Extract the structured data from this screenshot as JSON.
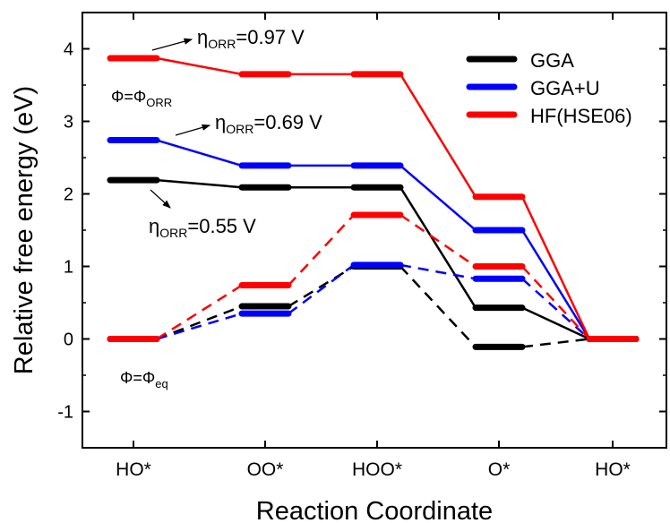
{
  "chart_data": {
    "type": "line",
    "xlabel": "Reaction Coordinate",
    "ylabel": "Relative free energy (eV)",
    "categories": [
      "HO*",
      "OO*",
      "HOO*",
      "O*",
      "HO*"
    ],
    "ylim": [
      -1.5,
      4.5
    ],
    "yticks": [
      -1,
      0,
      1,
      2,
      3,
      4
    ],
    "legend_position": "top-right",
    "series": [
      {
        "name": "GGA",
        "color": "#000000",
        "style": "solid",
        "values": [
          2.19,
          2.09,
          2.09,
          0.43,
          0.0
        ]
      },
      {
        "name": "GGA+U",
        "color": "#0000ff",
        "style": "solid",
        "values": [
          2.74,
          2.39,
          2.39,
          1.5,
          0.0
        ]
      },
      {
        "name": "HF(HSE06)",
        "color": "#ff0000",
        "style": "solid",
        "values": [
          3.87,
          3.65,
          3.65,
          1.96,
          0.0
        ]
      },
      {
        "color": "#000000",
        "style": "dashed",
        "values": [
          0.0,
          0.45,
          1.0,
          -0.11,
          0.0
        ]
      },
      {
        "color": "#0000ff",
        "style": "dashed",
        "values": [
          0.0,
          0.35,
          1.02,
          0.83,
          0.0
        ]
      },
      {
        "color": "#ff0000",
        "style": "dashed",
        "values": [
          0.0,
          0.74,
          1.71,
          1.0,
          0.0
        ]
      }
    ],
    "annotations": [
      {
        "eta": "η",
        "sub": "ORR",
        "value": "=0.97 V"
      },
      {
        "eta": "η",
        "sub": "ORR",
        "value": "=0.69 V"
      },
      {
        "eta": "η",
        "sub": "ORR",
        "value": "=0.55 V"
      }
    ],
    "phi_labels": [
      {
        "main": "Φ=Φ",
        "sub": "ORR"
      },
      {
        "main": "Φ=Φ",
        "sub": "eq"
      }
    ]
  }
}
